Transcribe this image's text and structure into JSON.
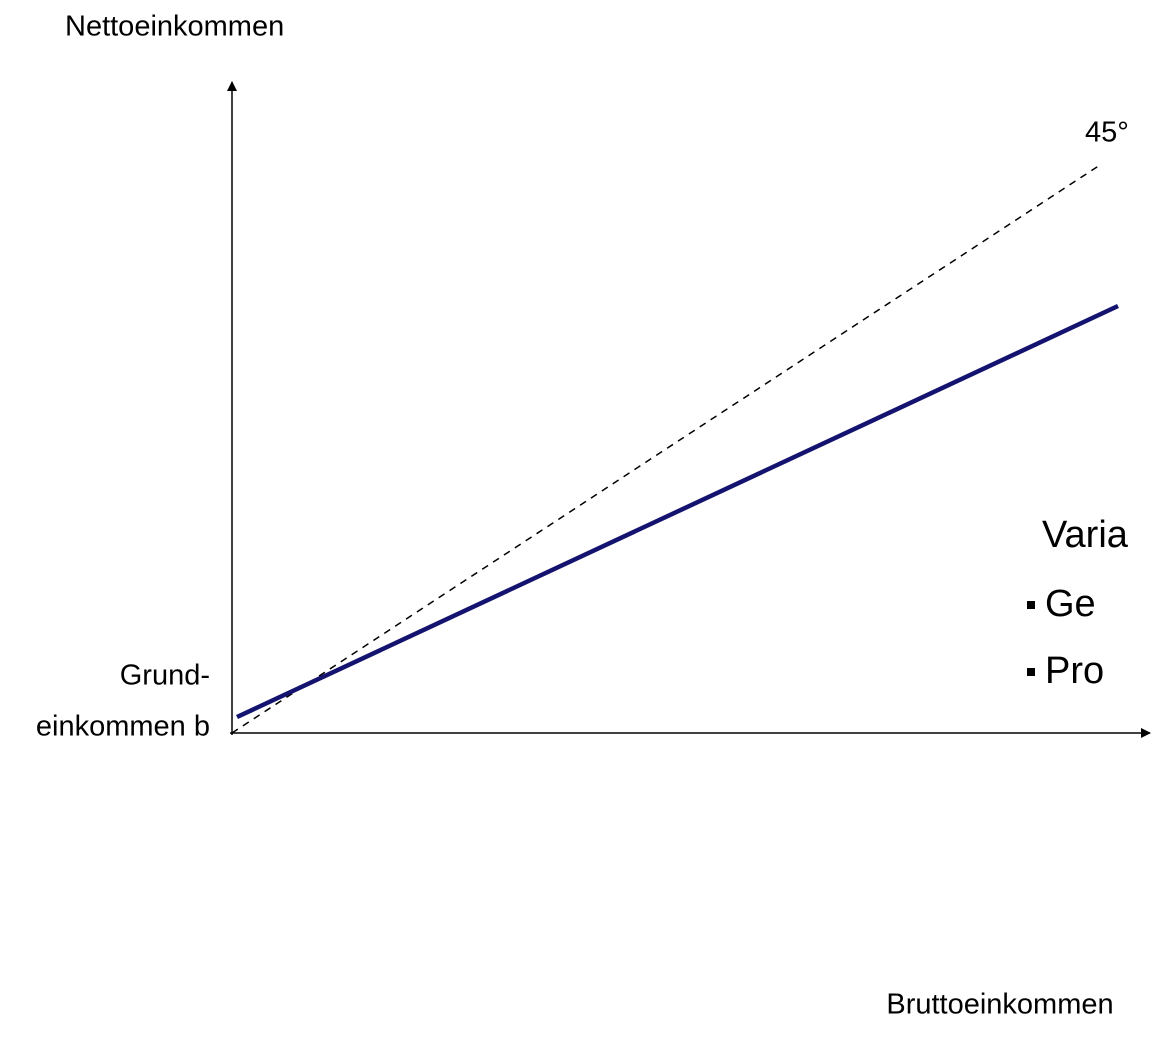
{
  "y_axis_label": "Nettoeinkommen",
  "x_axis_label": "Bruttoeinkommen",
  "diagonal_label": "45°",
  "intercept_label": [
    "Grund-",
    "einkommen b"
  ],
  "side_text": {
    "heading": "Varia",
    "bullets": [
      "Ge",
      "Pro"
    ]
  }
}
